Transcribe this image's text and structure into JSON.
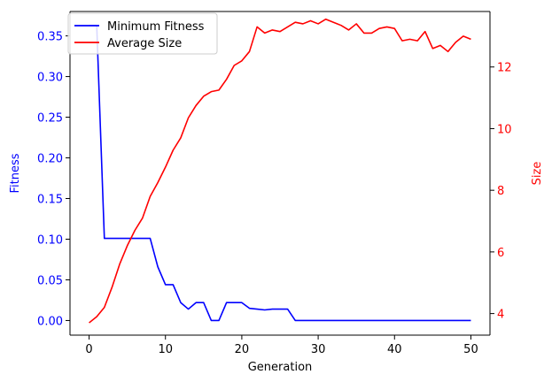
{
  "chart_data": {
    "type": "line",
    "xlabel": "Generation",
    "ylabel_left": "Fitness",
    "ylabel_right": "Size",
    "xlim": [
      -2.5,
      52.5
    ],
    "ylim_left": [
      -0.018,
      0.38
    ],
    "ylim_right": [
      3.3,
      13.8
    ],
    "x_ticks": [
      0,
      10,
      20,
      30,
      40,
      50
    ],
    "y_ticks_left": [
      0.0,
      0.05,
      0.1,
      0.15,
      0.2,
      0.25,
      0.3,
      0.35
    ],
    "y_ticks_left_labels": [
      "0.00",
      "0.05",
      "0.10",
      "0.15",
      "0.20",
      "0.25",
      "0.30",
      "0.35"
    ],
    "y_ticks_right": [
      4,
      6,
      8,
      10,
      12
    ],
    "legend_position": "top-left",
    "grid": false,
    "x": [
      0,
      1,
      2,
      3,
      4,
      5,
      6,
      7,
      8,
      9,
      10,
      11,
      12,
      13,
      14,
      15,
      16,
      17,
      18,
      19,
      20,
      21,
      22,
      23,
      24,
      25,
      26,
      27,
      28,
      29,
      30,
      31,
      32,
      33,
      34,
      35,
      36,
      37,
      38,
      39,
      40,
      41,
      42,
      43,
      44,
      45,
      46,
      47,
      48,
      49,
      50
    ],
    "series": [
      {
        "name": "Minimum Fitness",
        "axis": "left",
        "color": "#0000ff",
        "values": [
          0.363,
          0.363,
          0.101,
          0.101,
          0.101,
          0.101,
          0.101,
          0.101,
          0.101,
          0.066,
          0.044,
          0.044,
          0.022,
          0.014,
          0.022,
          0.022,
          0.0,
          0.0,
          0.022,
          0.022,
          0.022,
          0.015,
          0.014,
          0.013,
          0.014,
          0.014,
          0.014,
          0.0,
          0.0,
          0.0,
          0.0,
          0.0,
          0.0,
          0.0,
          0.0,
          0.0,
          0.0,
          0.0,
          0.0,
          0.0,
          0.0,
          0.0,
          0.0,
          0.0,
          0.0,
          0.0,
          0.0,
          0.0,
          0.0,
          0.0,
          0.0
        ]
      },
      {
        "name": "Average Size",
        "axis": "right",
        "color": "#ff0000",
        "values": [
          3.7,
          3.9,
          4.2,
          4.85,
          5.6,
          6.2,
          6.7,
          7.1,
          7.8,
          8.25,
          8.75,
          9.3,
          9.7,
          10.35,
          10.75,
          11.05,
          11.2,
          11.25,
          11.6,
          12.05,
          12.2,
          12.5,
          13.3,
          13.1,
          13.2,
          13.15,
          13.3,
          13.45,
          13.4,
          13.5,
          13.4,
          13.55,
          13.45,
          13.35,
          13.2,
          13.4,
          13.1,
          13.1,
          13.25,
          13.3,
          13.25,
          12.85,
          12.9,
          12.85,
          13.15,
          12.6,
          12.7,
          12.5,
          12.8,
          13.0,
          12.9
        ]
      }
    ]
  }
}
